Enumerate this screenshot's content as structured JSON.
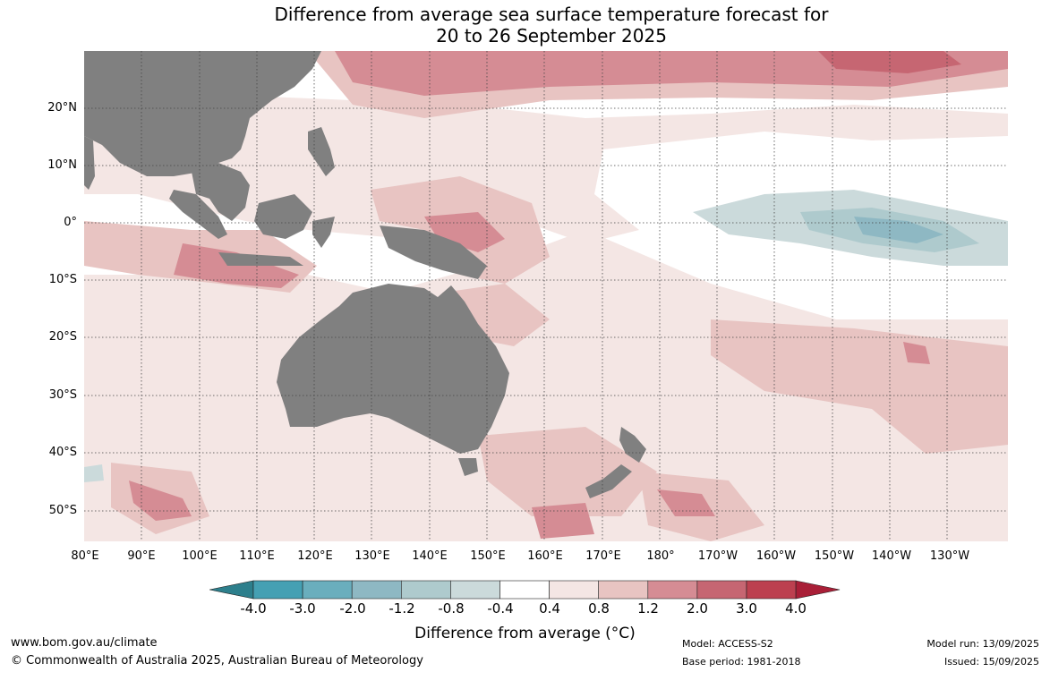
{
  "title": {
    "line1": "Difference from average sea surface temperature forecast for",
    "line2": "20 to 26 September 2025"
  },
  "map": {
    "ocean_color": "#ffffff",
    "land_color": "#808080",
    "lat_labels": [
      "20°N",
      "10°N",
      "0°",
      "10°S",
      "20°S",
      "30°S",
      "40°S",
      "50°S"
    ],
    "lon_labels": [
      "80°E",
      "90°E",
      "100°E",
      "110°E",
      "120°E",
      "130°E",
      "140°E",
      "150°E",
      "160°E",
      "170°E",
      "180°",
      "170°W",
      "160°W",
      "150°W",
      "140°W",
      "130°W"
    ]
  },
  "colorbar": {
    "colors": [
      "#2d7f8c",
      "#45a0b3",
      "#6aaebd",
      "#8eb8c3",
      "#aecacd",
      "#cbdadb",
      "#ffffff",
      "#f4e6e4",
      "#e8c4c2",
      "#d58c94",
      "#c66672",
      "#bc404f",
      "#a91f37"
    ],
    "tick_labels": [
      "-4.0",
      "-3.0",
      "-2.0",
      "-1.2",
      "-0.8",
      "-0.4",
      "0.4",
      "0.8",
      "1.2",
      "2.0",
      "3.0",
      "4.0"
    ],
    "title": "Difference from average (°C)"
  },
  "footer": {
    "website": "www.bom.gov.au/climate",
    "copyright": "© Commonwealth of Australia 2025, Australian Bureau of Meteorology",
    "model": "Model: ACCESS-S2",
    "base_period": "Base period: 1981-2018",
    "model_run": "Model run: 13/09/2025",
    "issued": "Issued: 15/09/2025"
  }
}
